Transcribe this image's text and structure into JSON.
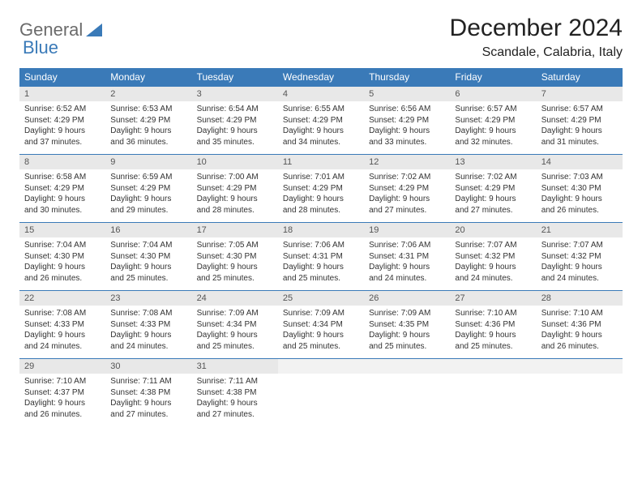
{
  "logo": {
    "text1": "General",
    "text2": "Blue"
  },
  "title": "December 2024",
  "location": "Scandale, Calabria, Italy",
  "colors": {
    "header_bg": "#3a7ab8",
    "header_fg": "#ffffff",
    "daynum_bg": "#e8e8e8",
    "daynum_empty_bg": "#f2f2f2",
    "row_divider": "#3a7ab8",
    "body_text": "#333333",
    "logo_gray": "#6b6b6b",
    "logo_blue": "#3a7ab8"
  },
  "days_of_week": [
    "Sunday",
    "Monday",
    "Tuesday",
    "Wednesday",
    "Thursday",
    "Friday",
    "Saturday"
  ],
  "weeks": [
    [
      {
        "num": "1",
        "sunrise": "6:52 AM",
        "sunset": "4:29 PM",
        "daylight": "9 hours and 37 minutes."
      },
      {
        "num": "2",
        "sunrise": "6:53 AM",
        "sunset": "4:29 PM",
        "daylight": "9 hours and 36 minutes."
      },
      {
        "num": "3",
        "sunrise": "6:54 AM",
        "sunset": "4:29 PM",
        "daylight": "9 hours and 35 minutes."
      },
      {
        "num": "4",
        "sunrise": "6:55 AM",
        "sunset": "4:29 PM",
        "daylight": "9 hours and 34 minutes."
      },
      {
        "num": "5",
        "sunrise": "6:56 AM",
        "sunset": "4:29 PM",
        "daylight": "9 hours and 33 minutes."
      },
      {
        "num": "6",
        "sunrise": "6:57 AM",
        "sunset": "4:29 PM",
        "daylight": "9 hours and 32 minutes."
      },
      {
        "num": "7",
        "sunrise": "6:57 AM",
        "sunset": "4:29 PM",
        "daylight": "9 hours and 31 minutes."
      }
    ],
    [
      {
        "num": "8",
        "sunrise": "6:58 AM",
        "sunset": "4:29 PM",
        "daylight": "9 hours and 30 minutes."
      },
      {
        "num": "9",
        "sunrise": "6:59 AM",
        "sunset": "4:29 PM",
        "daylight": "9 hours and 29 minutes."
      },
      {
        "num": "10",
        "sunrise": "7:00 AM",
        "sunset": "4:29 PM",
        "daylight": "9 hours and 28 minutes."
      },
      {
        "num": "11",
        "sunrise": "7:01 AM",
        "sunset": "4:29 PM",
        "daylight": "9 hours and 28 minutes."
      },
      {
        "num": "12",
        "sunrise": "7:02 AM",
        "sunset": "4:29 PM",
        "daylight": "9 hours and 27 minutes."
      },
      {
        "num": "13",
        "sunrise": "7:02 AM",
        "sunset": "4:29 PM",
        "daylight": "9 hours and 27 minutes."
      },
      {
        "num": "14",
        "sunrise": "7:03 AM",
        "sunset": "4:30 PM",
        "daylight": "9 hours and 26 minutes."
      }
    ],
    [
      {
        "num": "15",
        "sunrise": "7:04 AM",
        "sunset": "4:30 PM",
        "daylight": "9 hours and 26 minutes."
      },
      {
        "num": "16",
        "sunrise": "7:04 AM",
        "sunset": "4:30 PM",
        "daylight": "9 hours and 25 minutes."
      },
      {
        "num": "17",
        "sunrise": "7:05 AM",
        "sunset": "4:30 PM",
        "daylight": "9 hours and 25 minutes."
      },
      {
        "num": "18",
        "sunrise": "7:06 AM",
        "sunset": "4:31 PM",
        "daylight": "9 hours and 25 minutes."
      },
      {
        "num": "19",
        "sunrise": "7:06 AM",
        "sunset": "4:31 PM",
        "daylight": "9 hours and 24 minutes."
      },
      {
        "num": "20",
        "sunrise": "7:07 AM",
        "sunset": "4:32 PM",
        "daylight": "9 hours and 24 minutes."
      },
      {
        "num": "21",
        "sunrise": "7:07 AM",
        "sunset": "4:32 PM",
        "daylight": "9 hours and 24 minutes."
      }
    ],
    [
      {
        "num": "22",
        "sunrise": "7:08 AM",
        "sunset": "4:33 PM",
        "daylight": "9 hours and 24 minutes."
      },
      {
        "num": "23",
        "sunrise": "7:08 AM",
        "sunset": "4:33 PM",
        "daylight": "9 hours and 24 minutes."
      },
      {
        "num": "24",
        "sunrise": "7:09 AM",
        "sunset": "4:34 PM",
        "daylight": "9 hours and 25 minutes."
      },
      {
        "num": "25",
        "sunrise": "7:09 AM",
        "sunset": "4:34 PM",
        "daylight": "9 hours and 25 minutes."
      },
      {
        "num": "26",
        "sunrise": "7:09 AM",
        "sunset": "4:35 PM",
        "daylight": "9 hours and 25 minutes."
      },
      {
        "num": "27",
        "sunrise": "7:10 AM",
        "sunset": "4:36 PM",
        "daylight": "9 hours and 25 minutes."
      },
      {
        "num": "28",
        "sunrise": "7:10 AM",
        "sunset": "4:36 PM",
        "daylight": "9 hours and 26 minutes."
      }
    ],
    [
      {
        "num": "29",
        "sunrise": "7:10 AM",
        "sunset": "4:37 PM",
        "daylight": "9 hours and 26 minutes."
      },
      {
        "num": "30",
        "sunrise": "7:11 AM",
        "sunset": "4:38 PM",
        "daylight": "9 hours and 27 minutes."
      },
      {
        "num": "31",
        "sunrise": "7:11 AM",
        "sunset": "4:38 PM",
        "daylight": "9 hours and 27 minutes."
      },
      null,
      null,
      null,
      null
    ]
  ],
  "labels": {
    "sunrise": "Sunrise:",
    "sunset": "Sunset:",
    "daylight": "Daylight:"
  }
}
